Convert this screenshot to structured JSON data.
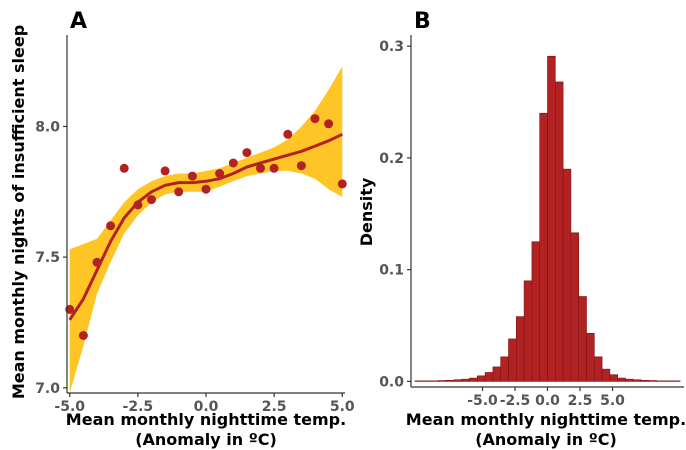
{
  "colors": {
    "point": "#b22222",
    "smooth_line": "#b22222",
    "confidence_band": "#ffc425",
    "bar_fill": "#b22222",
    "bar_edge": "#7a1414"
  },
  "chart_data": [
    {
      "type": "scatter",
      "panel_label": "A",
      "title": "",
      "xlabel_line1": "Mean monthly nighttime temp.",
      "xlabel_line2": "(Anomaly in ºC)",
      "ylabel": "Mean monthly nights of insufficient sleep",
      "xlim": [
        -5.1,
        5.1
      ],
      "ylim": [
        6.98,
        8.35
      ],
      "x_ticks": [
        -5.0,
        -2.5,
        0.0,
        2.5,
        5.0
      ],
      "x_tick_labels": [
        "-5.0",
        "-2.5",
        "0.0",
        "2.5",
        "5.0"
      ],
      "y_ticks": [
        7.0,
        7.5,
        8.0
      ],
      "y_tick_labels": [
        "7.0",
        "7.5",
        "8.0"
      ],
      "grid": false,
      "points": [
        {
          "x": -5.0,
          "y": 7.3
        },
        {
          "x": -4.5,
          "y": 7.2
        },
        {
          "x": -4.0,
          "y": 7.48
        },
        {
          "x": -3.5,
          "y": 7.62
        },
        {
          "x": -3.0,
          "y": 7.84
        },
        {
          "x": -2.5,
          "y": 7.7
        },
        {
          "x": -2.0,
          "y": 7.72
        },
        {
          "x": -1.5,
          "y": 7.83
        },
        {
          "x": -1.0,
          "y": 7.75
        },
        {
          "x": -0.5,
          "y": 7.81
        },
        {
          "x": 0.0,
          "y": 7.76
        },
        {
          "x": 0.5,
          "y": 7.82
        },
        {
          "x": 1.0,
          "y": 7.86
        },
        {
          "x": 1.5,
          "y": 7.9
        },
        {
          "x": 2.0,
          "y": 7.84
        },
        {
          "x": 2.5,
          "y": 7.84
        },
        {
          "x": 3.0,
          "y": 7.97
        },
        {
          "x": 3.5,
          "y": 7.85
        },
        {
          "x": 4.0,
          "y": 8.03
        },
        {
          "x": 4.5,
          "y": 8.01
        },
        {
          "x": 5.0,
          "y": 7.78
        }
      ],
      "smooth": {
        "x": [
          -5.0,
          -4.5,
          -4.0,
          -3.5,
          -3.0,
          -2.5,
          -2.0,
          -1.5,
          -1.0,
          -0.5,
          0.0,
          0.5,
          1.0,
          1.5,
          2.0,
          2.5,
          3.0,
          3.5,
          4.0,
          4.5,
          5.0
        ],
        "y": [
          7.26,
          7.34,
          7.45,
          7.56,
          7.65,
          7.71,
          7.75,
          7.775,
          7.785,
          7.785,
          7.79,
          7.8,
          7.82,
          7.845,
          7.86,
          7.875,
          7.89,
          7.905,
          7.925,
          7.945,
          7.97
        ],
        "lower": [
          6.98,
          7.16,
          7.36,
          7.48,
          7.59,
          7.66,
          7.71,
          7.74,
          7.75,
          7.75,
          7.75,
          7.77,
          7.79,
          7.81,
          7.82,
          7.83,
          7.83,
          7.82,
          7.8,
          7.76,
          7.73
        ],
        "upper": [
          7.53,
          7.55,
          7.57,
          7.64,
          7.71,
          7.76,
          7.79,
          7.81,
          7.82,
          7.82,
          7.83,
          7.84,
          7.86,
          7.88,
          7.9,
          7.92,
          7.95,
          8.0,
          8.06,
          8.14,
          8.23
        ]
      }
    },
    {
      "type": "bar",
      "subtype": "histogram",
      "panel_label": "B",
      "title": "",
      "xlabel_line1": "Mean monthly nighttime temp.",
      "xlabel_line2": "(Anomaly in ºC)",
      "ylabel": "Density",
      "xlim": [
        -10.5,
        10.5
      ],
      "ylim": [
        -0.005,
        0.31
      ],
      "x_ticks": [
        -5.0,
        -2.5,
        0.0,
        2.5,
        5.0
      ],
      "x_tick_labels": [
        "-5.0",
        "-2.5",
        "0.0",
        "2.5",
        "5.0"
      ],
      "y_ticks": [
        0.0,
        0.1,
        0.2,
        0.3
      ],
      "y_tick_labels": [
        "0.0",
        "0.1",
        "0.2",
        "0.3"
      ],
      "grid": false,
      "bin_width": 0.6,
      "bin_starts": [
        -10.2,
        -9.6,
        -9.0,
        -8.4,
        -7.8,
        -7.2,
        -6.6,
        -6.0,
        -5.4,
        -4.8,
        -4.2,
        -3.6,
        -3.0,
        -2.4,
        -1.8,
        -1.2,
        -0.6,
        0.0,
        0.6,
        1.2,
        1.8,
        2.4,
        3.0,
        3.6,
        4.2,
        4.8,
        5.4,
        6.0,
        6.6,
        7.2,
        7.8,
        8.4,
        9.0,
        9.6
      ],
      "values": [
        0.0005,
        0.0005,
        0.0005,
        0.0008,
        0.001,
        0.0015,
        0.002,
        0.003,
        0.005,
        0.008,
        0.013,
        0.022,
        0.038,
        0.058,
        0.09,
        0.125,
        0.24,
        0.291,
        0.268,
        0.19,
        0.133,
        0.076,
        0.043,
        0.022,
        0.011,
        0.006,
        0.003,
        0.002,
        0.0015,
        0.001,
        0.0008,
        0.0005,
        0.0005,
        0.0005
      ]
    }
  ]
}
